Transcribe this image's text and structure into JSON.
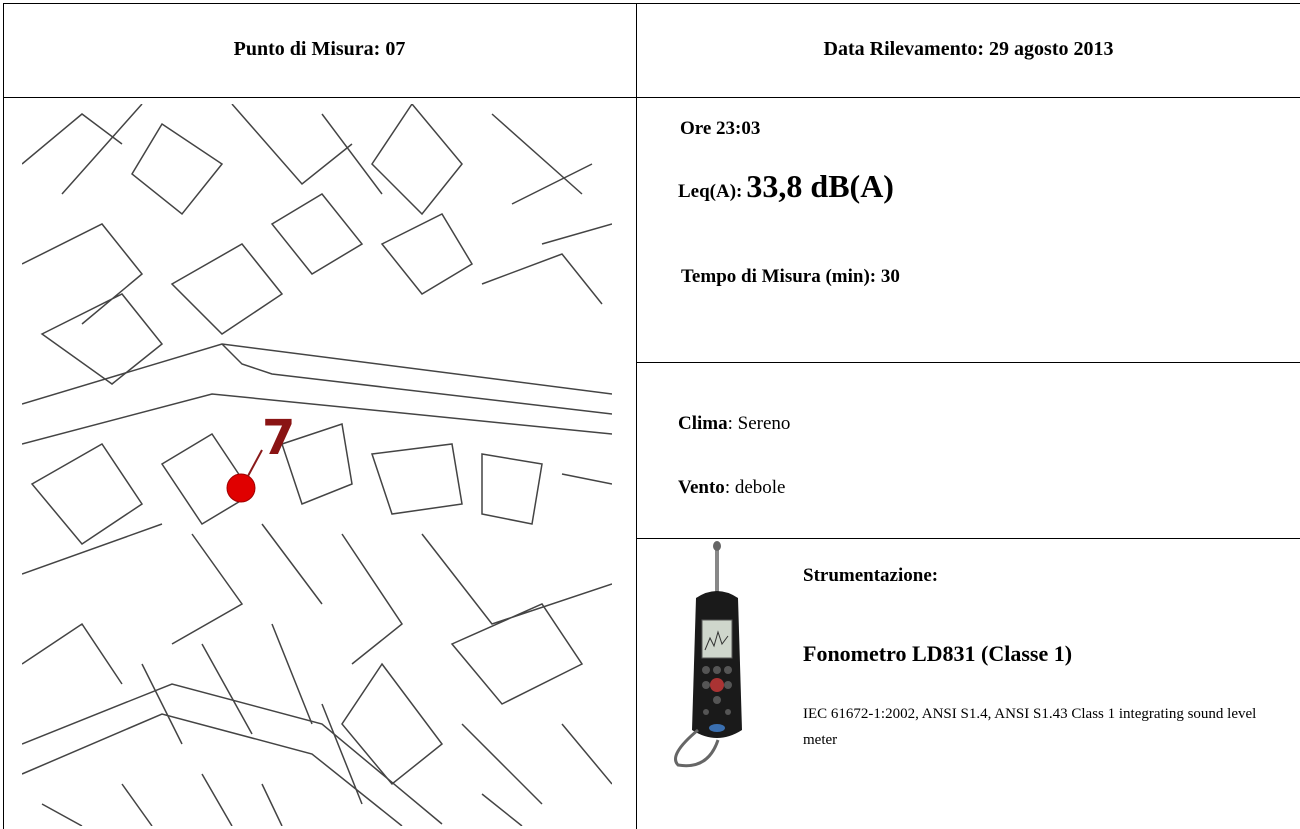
{
  "header": {
    "left": "Punto di Misura: 07",
    "right": "Data Rilevamento: 29 agosto 2013"
  },
  "map": {
    "point_label": "7"
  },
  "measurement": {
    "time": "Ore 23:03",
    "leq_label": "Leq(A):",
    "leq_value": "33,8 dB(A)",
    "duration": "Tempo di Misura (min): 30"
  },
  "weather": {
    "clima_label": "Clima",
    "clima_value": ": Sereno",
    "vento_label": "Vento",
    "vento_value": ": debole"
  },
  "instrument": {
    "heading": "Strumentazione:",
    "name": "Fonometro LD831 (Classe 1)",
    "description": "IEC 61672-1:2002, ANSI S1.4, ANSI S1.43 Class 1 integrating sound level meter"
  }
}
